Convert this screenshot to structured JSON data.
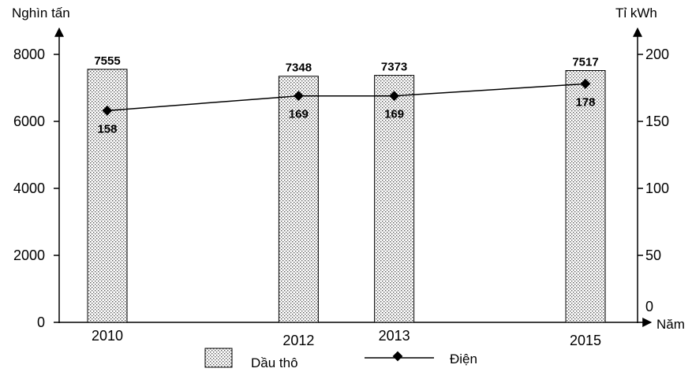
{
  "chart_data": {
    "type": "bar",
    "categories": [
      "2010",
      "2012",
      "2013",
      "2015"
    ],
    "x_unit": "Năm",
    "y_left": {
      "unit": "Nghìn tấn",
      "ticks": [
        "0",
        "2000",
        "4000",
        "6000",
        "8000"
      ],
      "range": [
        0,
        8000
      ]
    },
    "y_right": {
      "unit": "Tỉ kWh",
      "ticks": [
        "0",
        "50",
        "100",
        "150",
        "200"
      ],
      "range": [
        0,
        200
      ]
    },
    "series": [
      {
        "name": "Dầu thô",
        "kind": "bar",
        "axis": "left",
        "values": [
          7555,
          7348,
          7373,
          7517
        ],
        "labels": [
          "7555",
          "7348",
          "7373",
          "7517"
        ]
      },
      {
        "name": "Điện",
        "kind": "line",
        "axis": "right",
        "values": [
          158,
          169,
          169,
          178
        ],
        "labels": [
          "158",
          "169",
          "169",
          "178"
        ]
      }
    ],
    "legend": [
      "Dầu thô",
      "Điện"
    ],
    "legend_position": "bottom",
    "grid": false
  }
}
